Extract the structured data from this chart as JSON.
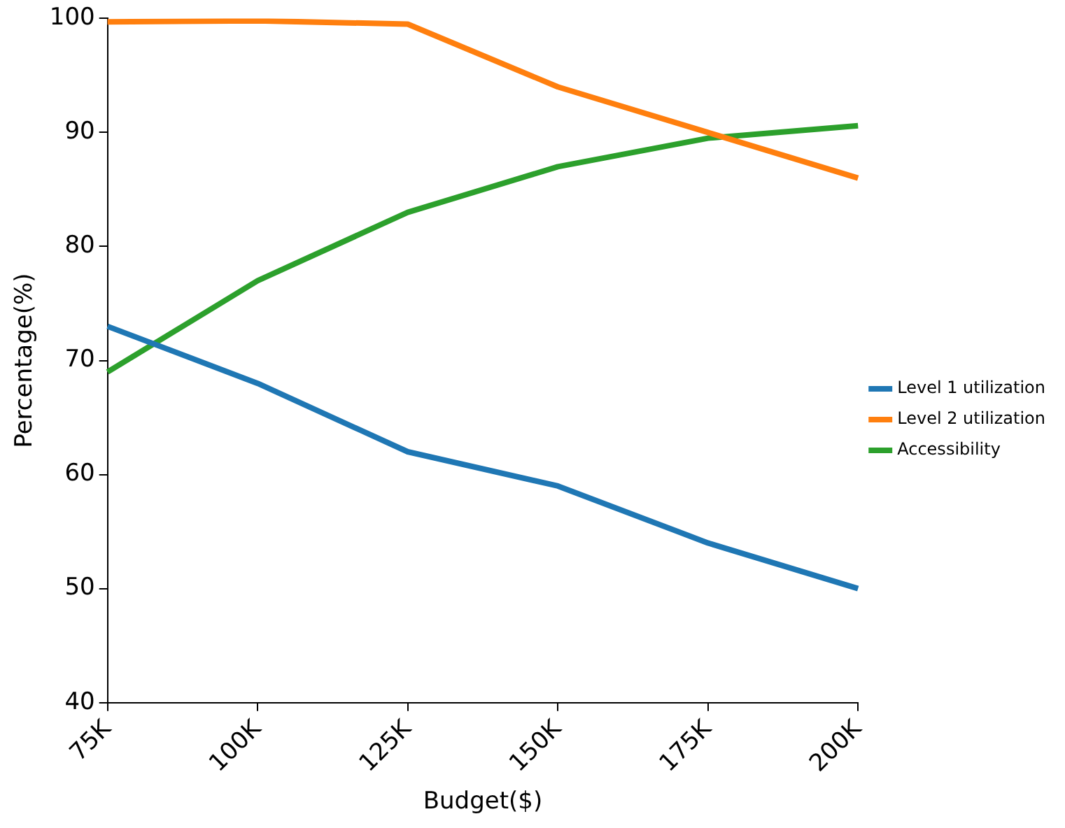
{
  "chart_data": {
    "type": "line",
    "xlabel": "Budget($)",
    "ylabel": "Percentage(%)",
    "categories": [
      "75K",
      "100K",
      "125K",
      "150K",
      "175K",
      "200K"
    ],
    "series": [
      {
        "name": "Level 1 utilization",
        "color": "#1f77b4",
        "values": [
          73,
          68,
          62,
          59,
          54,
          50
        ]
      },
      {
        "name": "Level 2 utilization",
        "color": "#ff7f0e",
        "values": [
          99.7,
          99.8,
          99.5,
          94,
          90,
          86
        ]
      },
      {
        "name": "Accessibility",
        "color": "#2ca02c",
        "values": [
          69,
          77,
          83,
          87,
          89.5,
          90.6
        ]
      }
    ],
    "ylim": [
      40,
      100
    ],
    "yticks": [
      40,
      50,
      60,
      70,
      80,
      90,
      100
    ],
    "legend": "right",
    "marker": "none",
    "line_style": "solid"
  }
}
